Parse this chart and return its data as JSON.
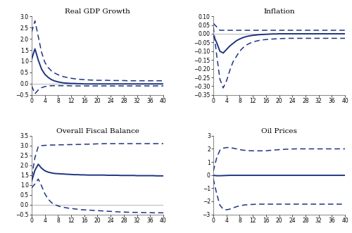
{
  "line_color": "#1f3580",
  "background_color": "#ffffff",
  "panels": [
    {
      "title": "Real GDP Growth",
      "ylim": [
        -0.5,
        3.0
      ],
      "yticks": [
        -0.5,
        0.0,
        0.5,
        1.0,
        1.5,
        2.0,
        2.5,
        3.0
      ],
      "xticks": [
        0,
        4,
        8,
        12,
        16,
        20,
        24,
        28,
        32,
        36,
        40
      ],
      "horizon": 40,
      "median": [
        1.1,
        1.55,
        1.05,
        0.65,
        0.42,
        0.28,
        0.18,
        0.12,
        0.08,
        0.05,
        0.03,
        0.02,
        0.01,
        0.01,
        0.0,
        0.0,
        -0.01,
        -0.01,
        -0.01,
        -0.01,
        -0.01,
        -0.01,
        -0.01,
        -0.01,
        -0.01,
        -0.01,
        -0.01,
        -0.01,
        -0.01,
        -0.01,
        -0.01,
        -0.01,
        -0.01,
        -0.01,
        -0.01,
        -0.01,
        -0.01,
        -0.01,
        -0.01,
        -0.01,
        -0.01
      ],
      "upper": [
        2.3,
        2.8,
        2.1,
        1.4,
        0.95,
        0.72,
        0.57,
        0.47,
        0.4,
        0.34,
        0.3,
        0.27,
        0.24,
        0.22,
        0.2,
        0.19,
        0.18,
        0.17,
        0.16,
        0.16,
        0.15,
        0.15,
        0.15,
        0.15,
        0.14,
        0.14,
        0.14,
        0.14,
        0.14,
        0.13,
        0.13,
        0.13,
        0.13,
        0.13,
        0.13,
        0.13,
        0.13,
        0.13,
        0.13,
        0.13,
        0.13
      ],
      "lower": [
        -0.1,
        -0.45,
        -0.28,
        -0.18,
        -0.13,
        -0.1,
        -0.09,
        -0.09,
        -0.09,
        -0.09,
        -0.09,
        -0.09,
        -0.1,
        -0.1,
        -0.1,
        -0.1,
        -0.1,
        -0.1,
        -0.1,
        -0.1,
        -0.1,
        -0.1,
        -0.1,
        -0.1,
        -0.1,
        -0.1,
        -0.1,
        -0.1,
        -0.1,
        -0.1,
        -0.1,
        -0.1,
        -0.1,
        -0.1,
        -0.1,
        -0.1,
        -0.1,
        -0.1,
        -0.1,
        -0.1,
        -0.1
      ]
    },
    {
      "title": "Inflation",
      "ylim": [
        -0.35,
        0.1
      ],
      "yticks": [
        -0.35,
        -0.3,
        -0.25,
        -0.2,
        -0.15,
        -0.1,
        -0.05,
        0.0,
        0.05,
        0.1
      ],
      "xticks": [
        0,
        4,
        8,
        12,
        16,
        20,
        24,
        28,
        32,
        36,
        40
      ],
      "horizon": 40,
      "median": [
        -0.01,
        -0.05,
        -0.1,
        -0.11,
        -0.09,
        -0.07,
        -0.055,
        -0.04,
        -0.03,
        -0.022,
        -0.016,
        -0.012,
        -0.009,
        -0.007,
        -0.005,
        -0.004,
        -0.003,
        -0.002,
        -0.001,
        -0.001,
        0.0,
        0.0,
        0.0,
        0.0,
        0.0,
        0.0,
        0.0,
        0.0,
        0.0,
        0.0,
        0.0,
        0.0,
        0.0,
        0.0,
        0.0,
        0.0,
        0.0,
        0.0,
        0.0,
        0.0,
        0.0
      ],
      "upper": [
        0.06,
        0.04,
        0.02,
        0.02,
        0.02,
        0.02,
        0.02,
        0.02,
        0.02,
        0.02,
        0.02,
        0.02,
        0.02,
        0.02,
        0.02,
        0.02,
        0.02,
        0.02,
        0.02,
        0.02,
        0.02,
        0.02,
        0.02,
        0.02,
        0.02,
        0.02,
        0.02,
        0.02,
        0.02,
        0.02,
        0.02,
        0.02,
        0.02,
        0.02,
        0.02,
        0.02,
        0.02,
        0.02,
        0.02,
        0.02,
        0.02
      ],
      "lower": [
        0.04,
        -0.12,
        -0.26,
        -0.31,
        -0.27,
        -0.21,
        -0.16,
        -0.13,
        -0.1,
        -0.08,
        -0.065,
        -0.055,
        -0.047,
        -0.042,
        -0.038,
        -0.035,
        -0.033,
        -0.031,
        -0.03,
        -0.029,
        -0.028,
        -0.027,
        -0.027,
        -0.026,
        -0.026,
        -0.026,
        -0.026,
        -0.026,
        -0.026,
        -0.026,
        -0.026,
        -0.026,
        -0.026,
        -0.026,
        -0.026,
        -0.026,
        -0.026,
        -0.026,
        -0.026,
        -0.026,
        -0.026
      ]
    },
    {
      "title": "Overall Fiscal Balance",
      "ylim": [
        -0.5,
        3.5
      ],
      "yticks": [
        -0.5,
        0.0,
        0.5,
        1.0,
        1.5,
        2.0,
        2.5,
        3.0,
        3.5
      ],
      "xticks": [
        0,
        4,
        8,
        12,
        16,
        20,
        24,
        28,
        32,
        36,
        40
      ],
      "horizon": 40,
      "median": [
        1.2,
        1.75,
        2.05,
        1.85,
        1.72,
        1.65,
        1.61,
        1.58,
        1.57,
        1.56,
        1.55,
        1.54,
        1.53,
        1.52,
        1.52,
        1.51,
        1.51,
        1.5,
        1.5,
        1.5,
        1.5,
        1.5,
        1.5,
        1.49,
        1.49,
        1.49,
        1.49,
        1.48,
        1.48,
        1.48,
        1.48,
        1.48,
        1.47,
        1.47,
        1.47,
        1.47,
        1.47,
        1.47,
        1.46,
        1.46,
        1.46
      ],
      "upper": [
        1.4,
        2.4,
        2.95,
        3.0,
        3.01,
        3.02,
        3.03,
        3.03,
        3.04,
        3.04,
        3.04,
        3.05,
        3.05,
        3.05,
        3.06,
        3.06,
        3.07,
        3.07,
        3.08,
        3.08,
        3.09,
        3.09,
        3.1,
        3.1,
        3.1,
        3.1,
        3.1,
        3.1,
        3.1,
        3.1,
        3.1,
        3.1,
        3.1,
        3.1,
        3.1,
        3.1,
        3.1,
        3.1,
        3.1,
        3.1,
        3.1
      ],
      "lower": [
        0.85,
        1.05,
        1.3,
        0.95,
        0.55,
        0.28,
        0.1,
        0.0,
        -0.07,
        -0.12,
        -0.15,
        -0.18,
        -0.2,
        -0.22,
        -0.24,
        -0.26,
        -0.27,
        -0.28,
        -0.29,
        -0.3,
        -0.31,
        -0.32,
        -0.33,
        -0.34,
        -0.35,
        -0.36,
        -0.37,
        -0.38,
        -0.38,
        -0.39,
        -0.39,
        -0.4,
        -0.4,
        -0.4,
        -0.41,
        -0.41,
        -0.41,
        -0.42,
        -0.42,
        -0.42,
        -0.42
      ]
    },
    {
      "title": "Oil Prices",
      "ylim": [
        -3.0,
        3.0
      ],
      "yticks": [
        -3,
        -2,
        -1,
        0,
        1,
        2,
        3
      ],
      "xticks": [
        0,
        4,
        8,
        12,
        16,
        20,
        24,
        28,
        32,
        36,
        40
      ],
      "horizon": 40,
      "median": [
        -0.02,
        -0.05,
        -0.05,
        -0.04,
        -0.03,
        -0.02,
        -0.02,
        -0.02,
        -0.02,
        -0.02,
        -0.02,
        -0.02,
        -0.02,
        -0.02,
        -0.02,
        -0.02,
        -0.02,
        -0.02,
        -0.02,
        -0.02,
        -0.02,
        -0.02,
        -0.02,
        -0.02,
        -0.02,
        -0.02,
        -0.02,
        -0.02,
        -0.02,
        -0.02,
        -0.02,
        -0.02,
        -0.02,
        -0.02,
        -0.02,
        -0.02,
        -0.02,
        -0.02,
        -0.02,
        -0.02,
        -0.02
      ],
      "upper": [
        0.3,
        1.3,
        1.9,
        2.05,
        2.1,
        2.1,
        2.05,
        2.0,
        1.95,
        1.9,
        1.88,
        1.86,
        1.85,
        1.85,
        1.85,
        1.85,
        1.85,
        1.88,
        1.9,
        1.92,
        1.94,
        1.96,
        1.97,
        1.98,
        1.99,
        2.0,
        2.0,
        2.0,
        2.0,
        2.0,
        2.0,
        2.0,
        2.0,
        2.0,
        2.0,
        2.0,
        2.0,
        2.0,
        2.0,
        2.0,
        2.0
      ],
      "lower": [
        -0.3,
        -1.4,
        -2.3,
        -2.6,
        -2.65,
        -2.6,
        -2.5,
        -2.42,
        -2.35,
        -2.3,
        -2.27,
        -2.25,
        -2.24,
        -2.23,
        -2.22,
        -2.22,
        -2.22,
        -2.22,
        -2.22,
        -2.22,
        -2.22,
        -2.22,
        -2.22,
        -2.22,
        -2.22,
        -2.22,
        -2.22,
        -2.22,
        -2.22,
        -2.22,
        -2.22,
        -2.22,
        -2.22,
        -2.22,
        -2.22,
        -2.22,
        -2.22,
        -2.22,
        -2.22,
        -2.22,
        -2.22
      ]
    }
  ]
}
